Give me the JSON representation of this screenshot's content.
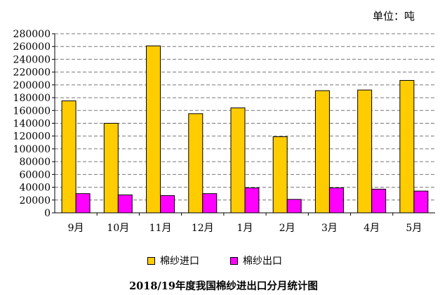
{
  "unit_label": "单位：吨",
  "chart_data": {
    "type": "bar",
    "title": "2018/19年度我国棉纱进出口分月统计图",
    "categories": [
      "9月",
      "10月",
      "11月",
      "12月",
      "1月",
      "2月",
      "3月",
      "4月",
      "5月"
    ],
    "series": [
      {
        "name": "棉纱进口",
        "color": "#FFCC00",
        "values": [
          175000,
          140000,
          261000,
          155000,
          164000,
          119000,
          191000,
          192000,
          207000
        ]
      },
      {
        "name": "棉纱出口",
        "color": "#FF00FF",
        "values": [
          30000,
          28000,
          27000,
          30000,
          39000,
          21000,
          39000,
          37000,
          34000
        ]
      }
    ],
    "ylim": [
      0,
      280000
    ],
    "yticks": [
      0,
      20000,
      40000,
      60000,
      80000,
      100000,
      120000,
      140000,
      160000,
      180000,
      200000,
      220000,
      240000,
      260000,
      280000
    ],
    "grid": true,
    "legend_position": "bottom"
  }
}
